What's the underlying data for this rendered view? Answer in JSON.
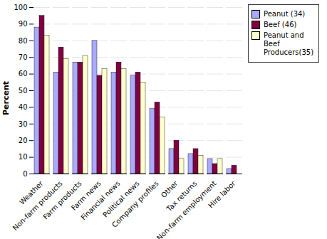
{
  "chart_data": {
    "type": "bar",
    "categories": [
      "Weather",
      "Non-farm products",
      "Farm products",
      "Farm news",
      "Financial news",
      "Political news",
      "Company profiles",
      "Other",
      "Tax returns",
      "Non-farm employment",
      "Hire labor"
    ],
    "series": [
      {
        "name": "Peanut (34)",
        "color": "#aaaaff",
        "values": [
          88,
          61,
          67,
          80,
          61,
          59,
          39,
          15,
          12,
          9,
          3
        ]
      },
      {
        "name": "Beef (46)",
        "color": "#800040",
        "values": [
          95,
          76,
          67,
          59,
          67,
          61,
          43,
          20,
          15,
          6,
          5
        ]
      },
      {
        "name": "Peanut and\nBeef\nProducers(35)",
        "color": "#ffffcc",
        "values": [
          83,
          69,
          71,
          63,
          63,
          55,
          34,
          9,
          11,
          9,
          0
        ]
      }
    ],
    "ylabel": "Percent",
    "ylim": [
      0,
      100
    ],
    "yticks": [
      0,
      10,
      20,
      30,
      40,
      50,
      60,
      70,
      80,
      90,
      100
    ],
    "grid": true,
    "legend": "upper right"
  }
}
